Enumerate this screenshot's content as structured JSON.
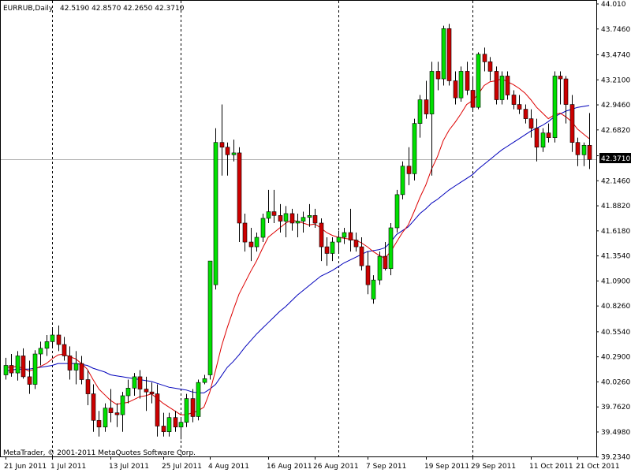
{
  "header": {
    "symbol_title": "EURRUB,Daily",
    "ohlc": "42.5190 42.8570 42.2650 42.3710"
  },
  "footer": {
    "copyright": "MetaTrader, © 2001-2011 MetaQuotes Software Corp."
  },
  "colors": {
    "bull": "#00e000",
    "bear": "#cc0000",
    "ma_fast": "#dd0000",
    "ma_slow": "#0000bb",
    "grid": "#000000",
    "price_line": "#b0b0b0"
  },
  "chart_data": {
    "type": "candlestick",
    "symbol": "EURRUB",
    "timeframe": "Daily",
    "current_price": 42.371,
    "ylim": [
      39.24,
      44.01
    ],
    "yticks": [
      "44.010",
      "43.7460",
      "43.4740",
      "43.2100",
      "42.9460",
      "42.6820",
      "42.4100",
      "42.1460",
      "41.8820",
      "41.6180",
      "41.3540",
      "41.0900",
      "40.8260",
      "40.5540",
      "40.2900",
      "40.0260",
      "39.7620",
      "39.4980",
      "39.2340"
    ],
    "xlabels": [
      "21 Jun 2011",
      "1 Jul 2011",
      "13 Jul 2011",
      "25 Jul 2011",
      "4 Aug 2011",
      "16 Aug 2011",
      "26 Aug 2011",
      "7 Sep 2011",
      "19 Sep 2011",
      "29 Sep 2011",
      "11 Oct 2011",
      "21 Oct 2011"
    ],
    "xlabel_bars": [
      0,
      8,
      18,
      27,
      35,
      45,
      53,
      62,
      72,
      80,
      90,
      98
    ],
    "separator_bars": [
      8,
      30,
      57,
      80
    ],
    "candles": [
      {
        "o": 40.1,
        "h": 40.28,
        "l": 40.05,
        "c": 40.2
      },
      {
        "o": 40.2,
        "h": 40.32,
        "l": 40.08,
        "c": 40.12
      },
      {
        "o": 40.12,
        "h": 40.35,
        "l": 40.04,
        "c": 40.3
      },
      {
        "o": 40.3,
        "h": 40.38,
        "l": 40.06,
        "c": 40.08
      },
      {
        "o": 40.08,
        "h": 40.25,
        "l": 39.9,
        "c": 40.0
      },
      {
        "o": 40.0,
        "h": 40.36,
        "l": 39.95,
        "c": 40.32
      },
      {
        "o": 40.32,
        "h": 40.45,
        "l": 40.2,
        "c": 40.38
      },
      {
        "o": 40.38,
        "h": 40.52,
        "l": 40.3,
        "c": 40.45
      },
      {
        "o": 40.45,
        "h": 40.6,
        "l": 40.38,
        "c": 40.52
      },
      {
        "o": 40.52,
        "h": 40.62,
        "l": 40.35,
        "c": 40.42
      },
      {
        "o": 40.42,
        "h": 40.5,
        "l": 40.25,
        "c": 40.3
      },
      {
        "o": 40.3,
        "h": 40.4,
        "l": 40.05,
        "c": 40.15
      },
      {
        "o": 40.15,
        "h": 40.35,
        "l": 40.0,
        "c": 40.22
      },
      {
        "o": 40.22,
        "h": 40.3,
        "l": 40.0,
        "c": 40.05
      },
      {
        "o": 40.05,
        "h": 40.15,
        "l": 39.78,
        "c": 39.9
      },
      {
        "o": 39.9,
        "h": 40.0,
        "l": 39.5,
        "c": 39.62
      },
      {
        "o": 39.62,
        "h": 39.72,
        "l": 39.45,
        "c": 39.55
      },
      {
        "o": 39.55,
        "h": 39.8,
        "l": 39.5,
        "c": 39.75
      },
      {
        "o": 39.75,
        "h": 39.95,
        "l": 39.6,
        "c": 39.7
      },
      {
        "o": 39.7,
        "h": 39.8,
        "l": 39.55,
        "c": 39.68
      },
      {
        "o": 39.68,
        "h": 39.92,
        "l": 39.5,
        "c": 39.88
      },
      {
        "o": 39.88,
        "h": 40.05,
        "l": 39.8,
        "c": 39.96
      },
      {
        "o": 39.96,
        "h": 40.12,
        "l": 39.88,
        "c": 40.08
      },
      {
        "o": 40.08,
        "h": 40.15,
        "l": 39.85,
        "c": 39.95
      },
      {
        "o": 39.95,
        "h": 40.08,
        "l": 39.72,
        "c": 39.92
      },
      {
        "o": 39.92,
        "h": 40.02,
        "l": 39.8,
        "c": 39.9
      },
      {
        "o": 39.9,
        "h": 40.0,
        "l": 39.45,
        "c": 39.56
      },
      {
        "o": 39.56,
        "h": 39.7,
        "l": 39.45,
        "c": 39.5
      },
      {
        "o": 39.5,
        "h": 39.7,
        "l": 39.45,
        "c": 39.65
      },
      {
        "o": 39.65,
        "h": 39.72,
        "l": 39.5,
        "c": 39.55
      },
      {
        "o": 39.55,
        "h": 39.65,
        "l": 39.42,
        "c": 39.6
      },
      {
        "o": 39.6,
        "h": 39.9,
        "l": 39.55,
        "c": 39.85
      },
      {
        "o": 39.85,
        "h": 39.95,
        "l": 39.6,
        "c": 39.66
      },
      {
        "o": 39.66,
        "h": 40.05,
        "l": 39.62,
        "c": 40.02
      },
      {
        "o": 40.02,
        "h": 40.1,
        "l": 40.0,
        "c": 40.06
      },
      {
        "o": 40.1,
        "h": 41.3,
        "l": 40.05,
        "c": 41.3
      },
      {
        "o": 41.05,
        "h": 42.7,
        "l": 41.0,
        "c": 42.55
      },
      {
        "o": 42.55,
        "h": 42.95,
        "l": 42.2,
        "c": 42.5
      },
      {
        "o": 42.5,
        "h": 42.55,
        "l": 42.2,
        "c": 42.42
      },
      {
        "o": 42.42,
        "h": 42.58,
        "l": 42.35,
        "c": 42.44
      },
      {
        "o": 42.44,
        "h": 42.5,
        "l": 41.5,
        "c": 41.7
      },
      {
        "o": 41.7,
        "h": 41.8,
        "l": 41.4,
        "c": 41.5
      },
      {
        "o": 41.5,
        "h": 41.65,
        "l": 41.3,
        "c": 41.45
      },
      {
        "o": 41.45,
        "h": 41.6,
        "l": 41.4,
        "c": 41.55
      },
      {
        "o": 41.55,
        "h": 41.8,
        "l": 41.5,
        "c": 41.75
      },
      {
        "o": 41.75,
        "h": 42.05,
        "l": 41.7,
        "c": 41.82
      },
      {
        "o": 41.82,
        "h": 42.05,
        "l": 41.7,
        "c": 41.78
      },
      {
        "o": 41.78,
        "h": 41.9,
        "l": 41.6,
        "c": 41.72
      },
      {
        "o": 41.72,
        "h": 41.88,
        "l": 41.55,
        "c": 41.8
      },
      {
        "o": 41.8,
        "h": 41.85,
        "l": 41.62,
        "c": 41.7
      },
      {
        "o": 41.7,
        "h": 41.8,
        "l": 41.55,
        "c": 41.72
      },
      {
        "o": 41.72,
        "h": 41.82,
        "l": 41.6,
        "c": 41.76
      },
      {
        "o": 41.76,
        "h": 41.9,
        "l": 41.66,
        "c": 41.78
      },
      {
        "o": 41.78,
        "h": 41.85,
        "l": 41.65,
        "c": 41.7
      },
      {
        "o": 41.7,
        "h": 41.75,
        "l": 41.3,
        "c": 41.45
      },
      {
        "o": 41.45,
        "h": 41.55,
        "l": 41.25,
        "c": 41.38
      },
      {
        "o": 41.38,
        "h": 41.55,
        "l": 41.3,
        "c": 41.5
      },
      {
        "o": 41.5,
        "h": 41.62,
        "l": 41.4,
        "c": 41.55
      },
      {
        "o": 41.55,
        "h": 41.65,
        "l": 41.48,
        "c": 41.6
      },
      {
        "o": 41.6,
        "h": 41.85,
        "l": 41.4,
        "c": 41.52
      },
      {
        "o": 41.52,
        "h": 41.6,
        "l": 41.4,
        "c": 41.45
      },
      {
        "o": 41.45,
        "h": 41.55,
        "l": 41.2,
        "c": 41.25
      },
      {
        "o": 41.25,
        "h": 41.4,
        "l": 40.95,
        "c": 41.05
      },
      {
        "o": 40.9,
        "h": 41.15,
        "l": 40.85,
        "c": 41.1
      },
      {
        "o": 41.1,
        "h": 41.4,
        "l": 41.05,
        "c": 41.35
      },
      {
        "o": 41.35,
        "h": 41.5,
        "l": 41.2,
        "c": 41.22
      },
      {
        "o": 41.22,
        "h": 41.7,
        "l": 41.15,
        "c": 41.65
      },
      {
        "o": 41.65,
        "h": 42.05,
        "l": 41.6,
        "c": 42.0
      },
      {
        "o": 42.0,
        "h": 42.35,
        "l": 41.95,
        "c": 42.3
      },
      {
        "o": 42.3,
        "h": 42.5,
        "l": 42.1,
        "c": 42.22
      },
      {
        "o": 42.22,
        "h": 42.8,
        "l": 42.15,
        "c": 42.75
      },
      {
        "o": 42.75,
        "h": 43.05,
        "l": 42.6,
        "c": 43.0
      },
      {
        "o": 43.0,
        "h": 43.2,
        "l": 42.8,
        "c": 42.85
      },
      {
        "o": 42.85,
        "h": 43.4,
        "l": 42.2,
        "c": 43.3
      },
      {
        "o": 43.3,
        "h": 43.4,
        "l": 43.1,
        "c": 43.22
      },
      {
        "o": 43.22,
        "h": 43.78,
        "l": 43.15,
        "c": 43.75
      },
      {
        "o": 43.75,
        "h": 43.8,
        "l": 43.15,
        "c": 43.2
      },
      {
        "o": 43.2,
        "h": 43.3,
        "l": 42.95,
        "c": 43.02
      },
      {
        "o": 43.02,
        "h": 43.35,
        "l": 42.98,
        "c": 43.3
      },
      {
        "o": 43.3,
        "h": 43.4,
        "l": 43.05,
        "c": 43.1
      },
      {
        "o": 43.1,
        "h": 43.25,
        "l": 42.88,
        "c": 42.92
      },
      {
        "o": 42.92,
        "h": 43.5,
        "l": 42.9,
        "c": 43.48
      },
      {
        "o": 43.48,
        "h": 43.55,
        "l": 43.3,
        "c": 43.4
      },
      {
        "o": 43.4,
        "h": 43.45,
        "l": 43.2,
        "c": 43.3
      },
      {
        "o": 43.3,
        "h": 43.35,
        "l": 42.95,
        "c": 43.0
      },
      {
        "o": 43.0,
        "h": 43.3,
        "l": 42.95,
        "c": 43.25
      },
      {
        "o": 43.25,
        "h": 43.3,
        "l": 43.0,
        "c": 43.05
      },
      {
        "o": 43.05,
        "h": 43.1,
        "l": 42.9,
        "c": 42.95
      },
      {
        "o": 42.95,
        "h": 43.05,
        "l": 42.85,
        "c": 42.9
      },
      {
        "o": 42.9,
        "h": 42.95,
        "l": 42.75,
        "c": 42.8
      },
      {
        "o": 42.8,
        "h": 42.9,
        "l": 42.6,
        "c": 42.7
      },
      {
        "o": 42.7,
        "h": 42.8,
        "l": 42.35,
        "c": 42.5
      },
      {
        "o": 42.5,
        "h": 42.7,
        "l": 42.45,
        "c": 42.65
      },
      {
        "o": 42.65,
        "h": 42.75,
        "l": 42.55,
        "c": 42.6
      },
      {
        "o": 42.6,
        "h": 43.3,
        "l": 42.55,
        "c": 43.25
      },
      {
        "o": 43.25,
        "h": 43.3,
        "l": 42.95,
        "c": 43.22
      },
      {
        "o": 43.22,
        "h": 43.25,
        "l": 42.75,
        "c": 42.95
      },
      {
        "o": 42.95,
        "h": 43.05,
        "l": 42.45,
        "c": 42.55
      },
      {
        "o": 42.55,
        "h": 42.6,
        "l": 42.3,
        "c": 42.42
      },
      {
        "o": 42.42,
        "h": 42.55,
        "l": 42.3,
        "c": 42.52
      },
      {
        "o": 42.52,
        "h": 42.86,
        "l": 42.27,
        "c": 42.37
      }
    ],
    "ma_fast": [
      40.18,
      40.18,
      40.19,
      40.17,
      40.14,
      40.16,
      40.19,
      40.22,
      40.27,
      40.31,
      40.32,
      40.29,
      40.27,
      40.22,
      40.16,
      40.05,
      39.95,
      39.89,
      39.83,
      39.79,
      39.8,
      39.81,
      39.84,
      39.87,
      39.88,
      39.9,
      39.85,
      39.8,
      39.76,
      39.72,
      39.68,
      39.68,
      39.7,
      39.72,
      39.76,
      39.92,
      40.15,
      40.4,
      40.6,
      40.78,
      40.95,
      41.07,
      41.19,
      41.3,
      41.43,
      41.55,
      41.6,
      41.65,
      41.7,
      41.73,
      41.72,
      41.7,
      41.68,
      41.69,
      41.65,
      41.6,
      41.57,
      41.55,
      41.54,
      41.53,
      41.52,
      41.49,
      41.45,
      41.4,
      41.36,
      41.33,
      41.4,
      41.5,
      41.6,
      41.68,
      41.82,
      41.97,
      42.1,
      42.27,
      42.4,
      42.57,
      42.68,
      42.76,
      42.85,
      42.95,
      42.99,
      43.06,
      43.15,
      43.19,
      43.2,
      43.22,
      43.19,
      43.16,
      43.12,
      43.07,
      43.0,
      42.92,
      42.86,
      42.8,
      42.84,
      42.86,
      42.82,
      42.77,
      42.69,
      42.64,
      42.59
    ],
    "ma_slow": [
      40.14,
      40.15,
      40.16,
      40.16,
      40.16,
      40.17,
      40.18,
      40.19,
      40.2,
      40.22,
      40.22,
      40.22,
      40.22,
      40.21,
      40.2,
      40.17,
      40.15,
      40.13,
      40.1,
      40.09,
      40.08,
      40.07,
      40.06,
      40.05,
      40.04,
      40.03,
      40.01,
      39.99,
      39.97,
      39.96,
      39.95,
      39.94,
      39.92,
      39.91,
      39.91,
      39.95,
      40.0,
      40.09,
      40.18,
      40.24,
      40.31,
      40.39,
      40.46,
      40.53,
      40.59,
      40.65,
      40.71,
      40.77,
      40.82,
      40.88,
      40.94,
      40.99,
      41.04,
      41.09,
      41.14,
      41.17,
      41.2,
      41.24,
      41.28,
      41.31,
      41.34,
      41.37,
      41.4,
      41.41,
      41.42,
      41.44,
      41.5,
      41.58,
      41.62,
      41.66,
      41.73,
      41.8,
      41.85,
      41.91,
      41.95,
      42.0,
      42.05,
      42.09,
      42.13,
      42.17,
      42.21,
      42.27,
      42.32,
      42.37,
      42.42,
      42.47,
      42.51,
      42.55,
      42.59,
      42.63,
      42.67,
      42.7,
      42.73,
      42.77,
      42.82,
      42.85,
      42.88,
      42.9,
      42.92,
      42.93,
      42.94
    ]
  }
}
